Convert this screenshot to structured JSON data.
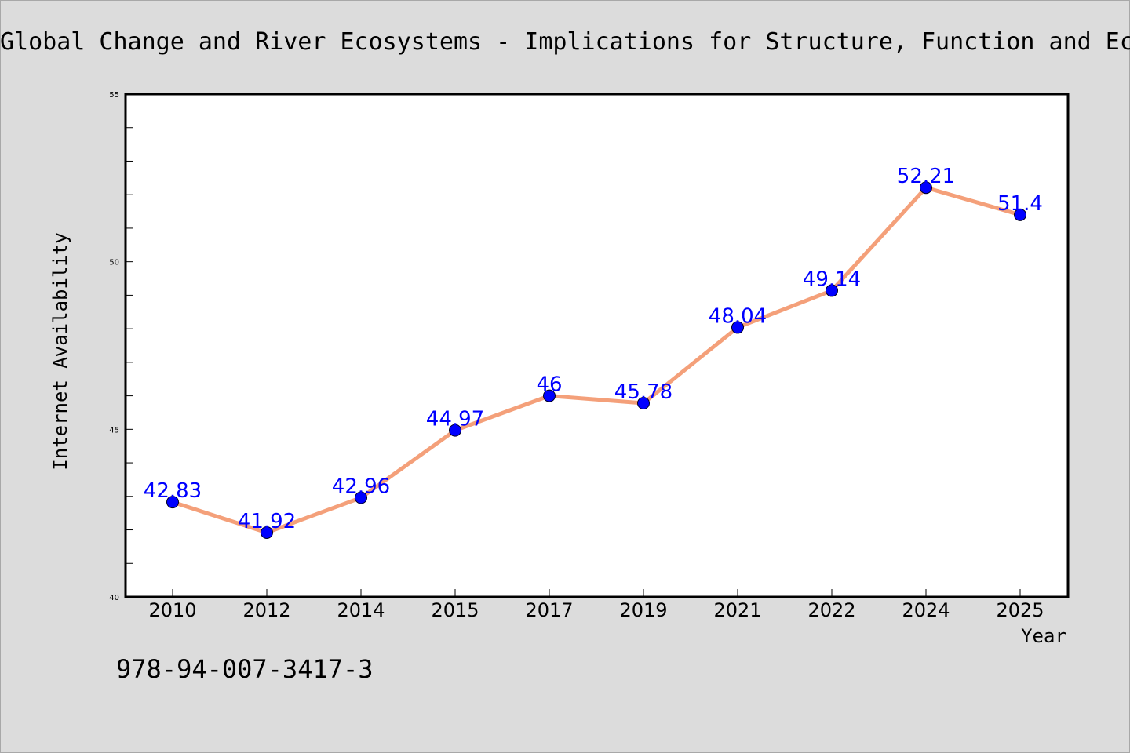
{
  "chart_data": {
    "type": "line",
    "title": "Global Change and River Ecosystems - Implications for Structure, Function and Ecosystem Services",
    "xlabel": "Year",
    "ylabel": "Internet Availability",
    "categories": [
      "2010",
      "2012",
      "2014",
      "2015",
      "2017",
      "2019",
      "2021",
      "2022",
      "2024",
      "2025"
    ],
    "values": [
      42.83,
      41.92,
      42.96,
      44.97,
      46,
      45.78,
      48.04,
      49.14,
      52.21,
      51.4
    ],
    "data_labels": [
      "42.83",
      "41.92",
      "42.96",
      "44.97",
      "46",
      "45.78",
      "48.04",
      "49.14",
      "52.21",
      "51.4"
    ],
    "ylim": [
      40,
      55
    ],
    "y_ticks": [
      "40",
      "45",
      "50",
      "55"
    ],
    "grid": false,
    "colors": {
      "line": "#f4a07a",
      "marker": "#0000ff",
      "label": "#0000ff",
      "background": "#dcdcdc",
      "plot_background": "#ffffff"
    }
  },
  "footer": {
    "text": "978-94-007-3417-3"
  }
}
